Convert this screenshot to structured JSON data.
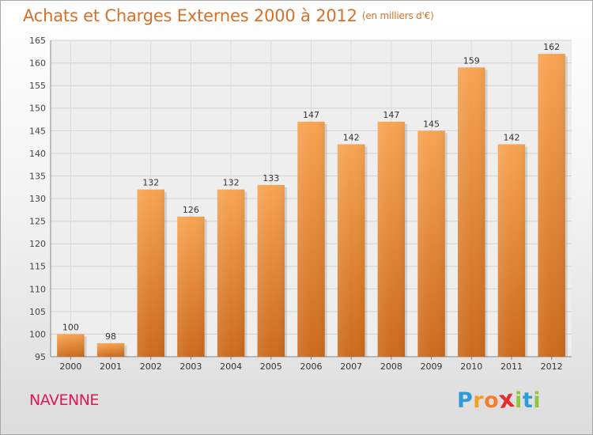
{
  "title": "Achats et Charges Externes 2000 à 2012",
  "subtitle": "(en milliers d'€)",
  "commune": "NAVENNE",
  "logo": {
    "letters": [
      "P",
      "r",
      "o",
      "x",
      "i",
      "t",
      "i"
    ],
    "colors": [
      "#2e9ad6",
      "#f0a020",
      "#f08030",
      "#e52d2d",
      "#8dc63f",
      "#2e9ad6",
      "#8dc63f"
    ]
  },
  "chart_data": {
    "type": "bar",
    "categories": [
      "2000",
      "2001",
      "2002",
      "2003",
      "2004",
      "2005",
      "2006",
      "2007",
      "2008",
      "2009",
      "2010",
      "2011",
      "2012"
    ],
    "values": [
      100,
      98,
      132,
      126,
      132,
      133,
      147,
      142,
      147,
      145,
      159,
      142,
      162
    ],
    "title": "Achats et Charges Externes 2000 à 2012",
    "ylim": [
      95,
      165
    ],
    "yticks": [
      95,
      100,
      105,
      110,
      115,
      120,
      125,
      130,
      135,
      140,
      145,
      150,
      155,
      160,
      165
    ],
    "grid": true,
    "bar_color": "#f0883a"
  }
}
